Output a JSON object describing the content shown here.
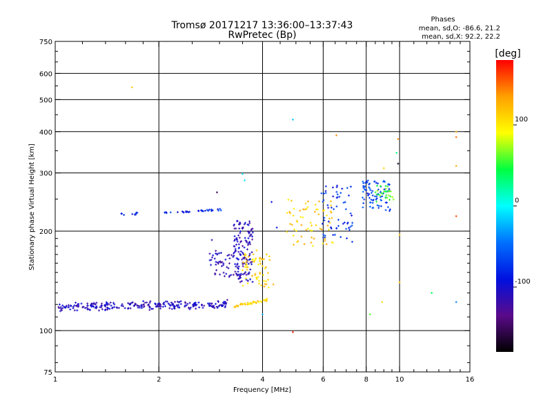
{
  "chart_data": {
    "type": "scatter",
    "title": "Tromsø 20171217 13:36:00–13:37:43",
    "subtitle": "RwPretec (Bp)",
    "stats": {
      "heading": "Phases",
      "line1": "mean, sd,O: -86.6, 21.2",
      "line2": "mean, sd,X:  92.2, 22.2"
    },
    "xlabel": "Frequency [MHz]",
    "ylabel": "Stationary phase Virtual Height [km]",
    "xscale": "log",
    "yscale": "log",
    "xlim": [
      1,
      16
    ],
    "ylim": [
      75,
      750
    ],
    "x_ticks": [
      {
        "value": 1,
        "label": "1"
      },
      {
        "value": 2,
        "label": "2"
      },
      {
        "value": 4,
        "label": "4"
      },
      {
        "value": 6,
        "label": "6"
      },
      {
        "value": 8,
        "label": "8"
      },
      {
        "value": 10,
        "label": "10"
      },
      {
        "value": 16,
        "label": "16"
      }
    ],
    "x_gridlines": [
      2,
      4,
      6,
      8,
      10
    ],
    "y_ticks": [
      {
        "value": 75,
        "label": "75"
      },
      {
        "value": 100,
        "label": "100"
      },
      {
        "value": 200,
        "label": "200"
      },
      {
        "value": 300,
        "label": "300"
      },
      {
        "value": 400,
        "label": "400"
      },
      {
        "value": 500,
        "label": "500"
      },
      {
        "value": 600,
        "label": "600"
      },
      {
        "value": 750,
        "label": "750"
      }
    ],
    "y_gridlines": [
      100,
      200,
      300,
      400,
      500,
      600
    ],
    "grid": true,
    "colorbar": {
      "label": "[deg]",
      "range": [
        -180,
        180
      ],
      "ticks": [
        {
          "value": 100,
          "label": "100"
        },
        {
          "value": 0,
          "label": "0"
        },
        {
          "value": -100,
          "label": "-100"
        }
      ],
      "colors": [
        "#000000",
        "#5a0a8a",
        "#0010e0",
        "#0070ff",
        "#00ffff",
        "#00ff40",
        "#ffff00",
        "#ffa000",
        "#ff0000"
      ]
    },
    "clusters": [
      {
        "name": "",
        "xmin": 1.02,
        "xmax": 3.2,
        "ylog_start": 118,
        "ylog_end": 120,
        "spread": 0.035,
        "phase": -108,
        "count": 260
      },
      {
        "name": "",
        "xmin": 3.25,
        "xmax": 4.15,
        "ylog_start": 118,
        "ylog_end": 124,
        "spread": 0.01,
        "phase": 112,
        "count": 45
      },
      {
        "name": "",
        "xmin": 1.55,
        "xmax": 1.75,
        "ylog_start": 226,
        "ylog_end": 226,
        "spread": 0.01,
        "phase": -80,
        "count": 10
      },
      {
        "name": "",
        "xmin": 2.0,
        "xmax": 3.05,
        "ylog_start": 227,
        "ylog_end": 232,
        "spread": 0.01,
        "phase": -80,
        "count": 32
      },
      {
        "name": "",
        "xmin": 3.3,
        "xmax": 3.75,
        "ylog_start": 140,
        "ylog_end": 215,
        "spread": 0.0,
        "phase": -110,
        "count": 140
      },
      {
        "name": "",
        "xmin": 2.8,
        "xmax": 3.3,
        "ylog_start": 145,
        "ylog_end": 175,
        "spread": 0.0,
        "phase": -112,
        "count": 45
      },
      {
        "name": "",
        "xmin": 3.5,
        "xmax": 4.2,
        "ylog_start": 135,
        "ylog_end": 175,
        "spread": 0.0,
        "phase": 110,
        "count": 60
      },
      {
        "name": "",
        "xmin": 4.7,
        "xmax": 6.4,
        "ylog_start": 180,
        "ylog_end": 250,
        "spread": 0.0,
        "phase": 115,
        "count": 70
      },
      {
        "name": "",
        "xmin": 5.9,
        "xmax": 7.3,
        "ylog_start": 185,
        "ylog_end": 275,
        "spread": 0.0,
        "phase": -80,
        "count": 60
      },
      {
        "name": "",
        "xmin": 7.8,
        "xmax": 9.4,
        "ylog_start": 230,
        "ylog_end": 285,
        "spread": 0.0,
        "phase": -70,
        "count": 80
      },
      {
        "name": "",
        "xmin": 8.5,
        "xmax": 9.6,
        "ylog_start": 245,
        "ylog_end": 275,
        "spread": 0.0,
        "phase": 55,
        "count": 30
      }
    ],
    "outliers": [
      {
        "x": 1.67,
        "y": 545,
        "phase": 115
      },
      {
        "x": 4.9,
        "y": 435,
        "phase": -20
      },
      {
        "x": 4.9,
        "y": 99,
        "phase": 170
      },
      {
        "x": 6.55,
        "y": 390,
        "phase": 140
      },
      {
        "x": 9.9,
        "y": 380,
        "phase": 140
      },
      {
        "x": 9.8,
        "y": 345,
        "phase": 30
      },
      {
        "x": 9.9,
        "y": 320,
        "phase": -170
      },
      {
        "x": 9.0,
        "y": 310,
        "phase": 110
      },
      {
        "x": 14.6,
        "y": 400,
        "phase": 130
      },
      {
        "x": 14.6,
        "y": 385,
        "phase": 150
      },
      {
        "x": 14.6,
        "y": 315,
        "phase": 130
      },
      {
        "x": 14.6,
        "y": 222,
        "phase": 160
      },
      {
        "x": 14.6,
        "y": 122,
        "phase": -40
      },
      {
        "x": 12.4,
        "y": 130,
        "phase": 40
      },
      {
        "x": 10.0,
        "y": 140,
        "phase": 120
      },
      {
        "x": 10.0,
        "y": 195,
        "phase": 120
      },
      {
        "x": 8.2,
        "y": 112,
        "phase": 60
      },
      {
        "x": 2.95,
        "y": 262,
        "phase": -150
      },
      {
        "x": 2.85,
        "y": 188,
        "phase": -110
      },
      {
        "x": 3.5,
        "y": 298,
        "phase": -10
      },
      {
        "x": 3.55,
        "y": 285,
        "phase": -10
      },
      {
        "x": 4.25,
        "y": 245,
        "phase": -90
      },
      {
        "x": 4.4,
        "y": 205,
        "phase": -90
      },
      {
        "x": 4.3,
        "y": 138,
        "phase": 130
      },
      {
        "x": 4.0,
        "y": 112,
        "phase": -30
      },
      {
        "x": 8.9,
        "y": 122,
        "phase": 110
      }
    ]
  }
}
